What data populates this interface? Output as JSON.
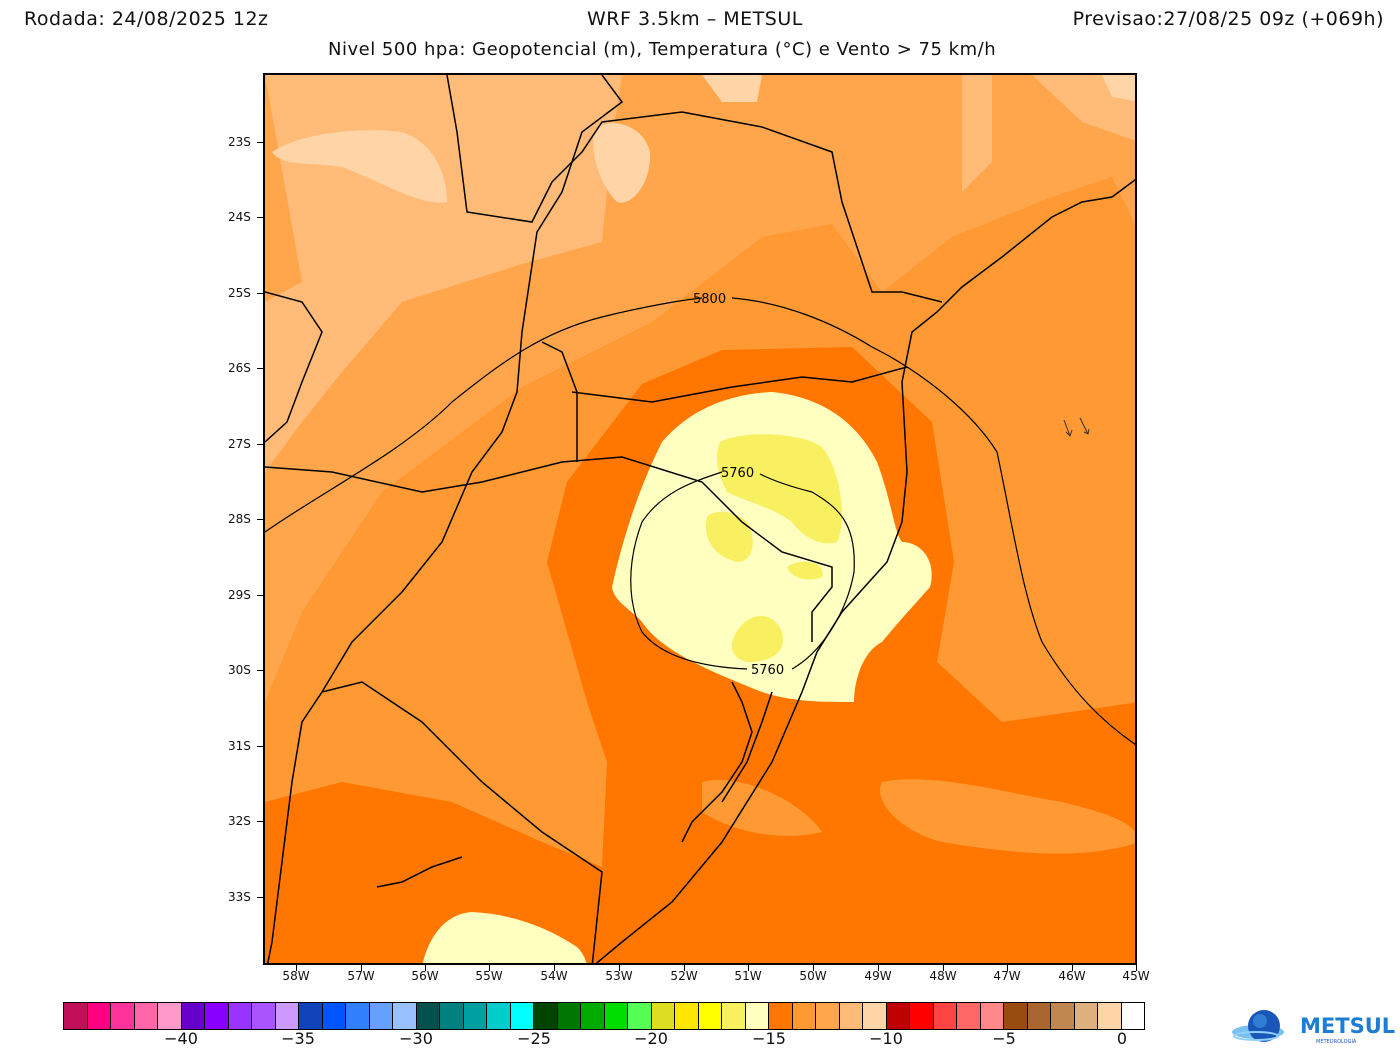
{
  "header": {
    "rodada": "Rodada: 24/08/2025 12z",
    "model": "WRF 3.5km – METSUL",
    "previsao": "Previsao:27/08/25 09z (+069h)",
    "subtitle": "Nivel 500 hpa: Geopotencial (m), Temperatura (°C) e Vento > 75 km/h"
  },
  "map": {
    "lat_labels": [
      "23S",
      "24S",
      "25S",
      "26S",
      "27S",
      "28S",
      "29S",
      "30S",
      "31S",
      "32S",
      "33S"
    ],
    "lon_labels": [
      "58W",
      "57W",
      "56W",
      "55W",
      "54W",
      "53W",
      "52W",
      "51W",
      "50W",
      "49W",
      "48W",
      "47W",
      "46W",
      "45W"
    ],
    "contours": [
      {
        "value": "5800",
        "label": "5800"
      },
      {
        "value": "5760",
        "label": "5760"
      }
    ],
    "colors": {
      "light_peach": "#ffd5a8",
      "peach": "#ffbb77",
      "light_orange": "#ffa64d",
      "orange": "#ff9933",
      "dark_orange": "#ff7700",
      "pale_yellow": "#ffffc0",
      "yellow": "#f8f060"
    }
  },
  "colorbar": {
    "colors": [
      "#c0105a",
      "#ff0080",
      "#ff3399",
      "#ff66aa",
      "#ff99cc",
      "#6600cc",
      "#8800ff",
      "#9933ff",
      "#aa55ff",
      "#cc99ff",
      "#1144bb",
      "#0055ff",
      "#3380ff",
      "#66a0ff",
      "#99c0ff",
      "#005050",
      "#008080",
      "#00a0a0",
      "#00cccc",
      "#00ffff",
      "#004400",
      "#007700",
      "#00aa00",
      "#00dd00",
      "#55ff55",
      "#dddd22",
      "#ffe600",
      "#ffff00",
      "#f8f060",
      "#ffffc0",
      "#ff7700",
      "#ff9933",
      "#ffa64d",
      "#ffbb77",
      "#ffd5a8",
      "#c00000",
      "#ff0000",
      "#ff4444",
      "#ff6666",
      "#ff8888",
      "#994c11",
      "#aa6630",
      "#c08850",
      "#dfb080",
      "#ffd5a8",
      "#ffffff"
    ],
    "labels": [
      "−40",
      "−35",
      "−30",
      "−25",
      "−20",
      "−15",
      "−10",
      "−5",
      "0"
    ]
  },
  "logo": {
    "brand": "METSUL",
    "tagline": "METEOROLOGIA"
  }
}
